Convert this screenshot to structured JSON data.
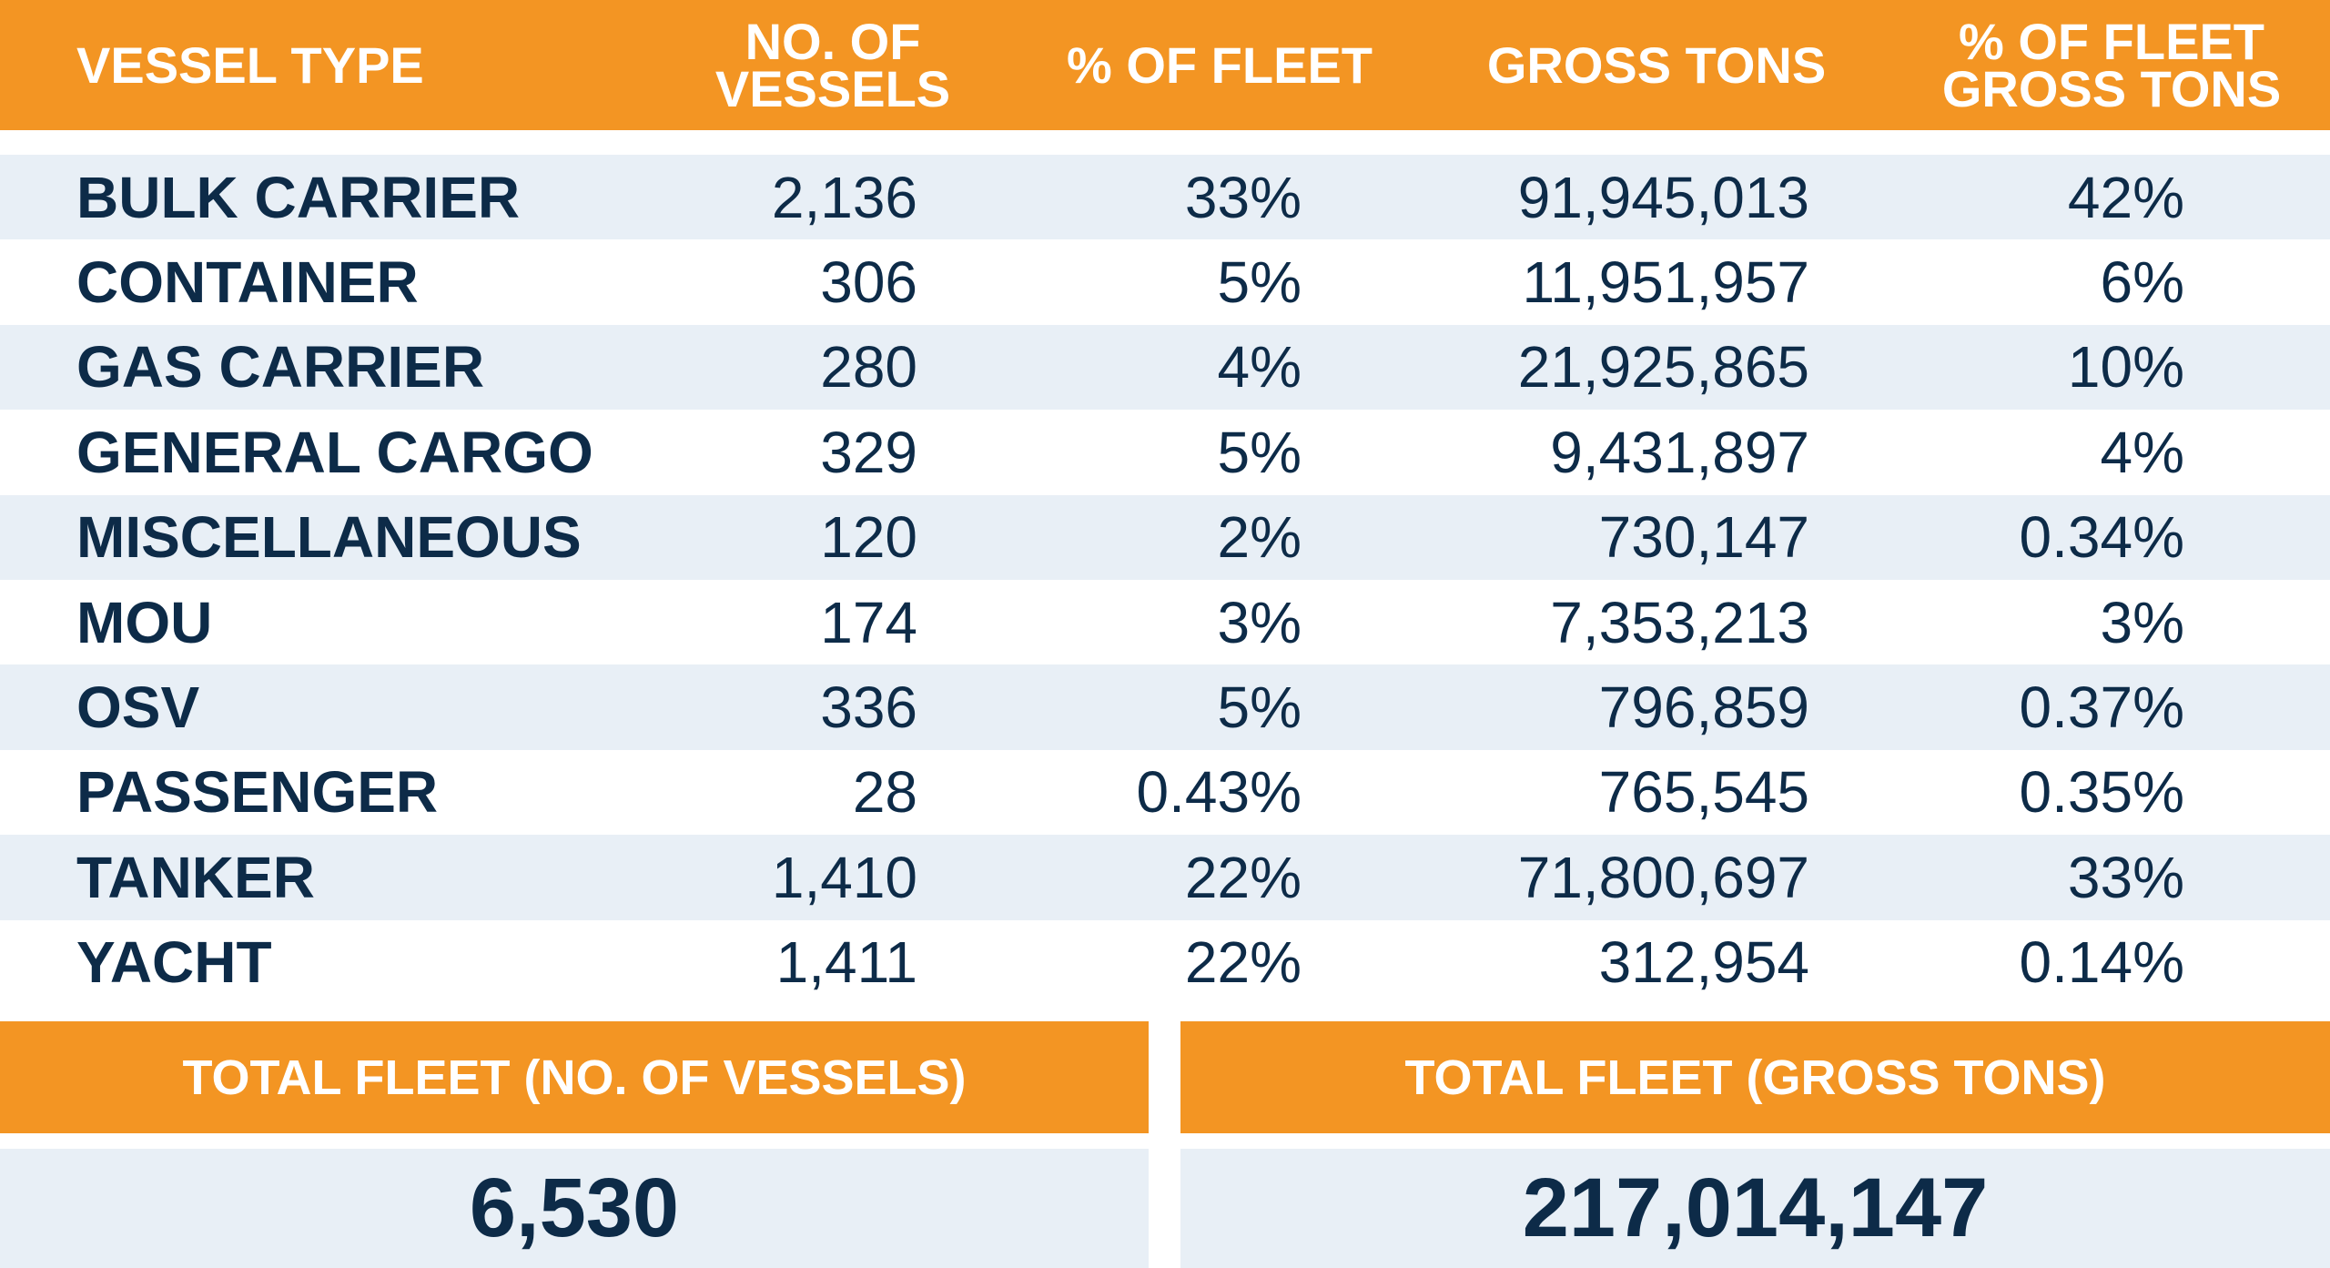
{
  "header": {
    "vessel_type": "VESSEL TYPE",
    "no_of_vessels_line1": "NO. OF",
    "no_of_vessels_line2": "VESSELS",
    "pct_of_fleet": "% OF FLEET",
    "gross_tons": "GROSS TONS",
    "pct_gross_tons_line1": "% OF FLEET",
    "pct_gross_tons_line2": "GROSS TONS"
  },
  "rows": [
    {
      "type": "BULK CARRIER",
      "vessels": "2,136",
      "pct_fleet": "33%",
      "gross_tons": "91,945,013",
      "pct_gross": "42%"
    },
    {
      "type": "CONTAINER",
      "vessels": "306",
      "pct_fleet": "5%",
      "gross_tons": "11,951,957",
      "pct_gross": "6%"
    },
    {
      "type": "GAS CARRIER",
      "vessels": "280",
      "pct_fleet": "4%",
      "gross_tons": "21,925,865",
      "pct_gross": "10%"
    },
    {
      "type": "GENERAL CARGO",
      "vessels": "329",
      "pct_fleet": "5%",
      "gross_tons": "9,431,897",
      "pct_gross": "4%"
    },
    {
      "type": "MISCELLANEOUS",
      "vessels": "120",
      "pct_fleet": "2%",
      "gross_tons": "730,147",
      "pct_gross": "0.34%"
    },
    {
      "type": "MOU",
      "vessels": "174",
      "pct_fleet": "3%",
      "gross_tons": "7,353,213",
      "pct_gross": "3%"
    },
    {
      "type": "OSV",
      "vessels": "336",
      "pct_fleet": "5%",
      "gross_tons": "796,859",
      "pct_gross": "0.37%"
    },
    {
      "type": "PASSENGER",
      "vessels": "28",
      "pct_fleet": "0.43%",
      "gross_tons": "765,545",
      "pct_gross": "0.35%"
    },
    {
      "type": "TANKER",
      "vessels": "1,410",
      "pct_fleet": "22%",
      "gross_tons": "71,800,697",
      "pct_gross": "33%"
    },
    {
      "type": "YACHT",
      "vessels": "1,411",
      "pct_fleet": "22%",
      "gross_tons": "312,954",
      "pct_gross": "0.14%"
    }
  ],
  "totals": {
    "vessels_label": "TOTAL FLEET (NO. OF VESSELS)",
    "vessels_value": "6,530",
    "gross_label": "TOTAL FLEET (GROSS TONS)",
    "gross_value": "217,014,147"
  },
  "colors": {
    "accent": "#f39523",
    "row_alt": "#e8eff6",
    "text": "#0d2b48"
  }
}
